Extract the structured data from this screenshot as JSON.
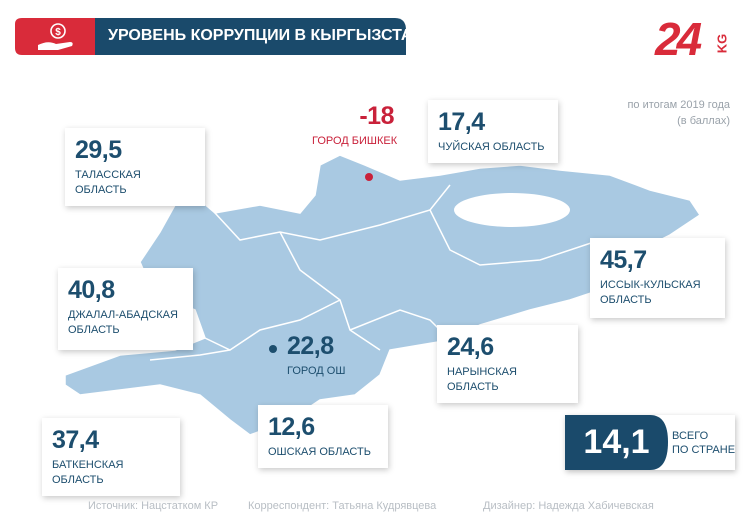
{
  "header": {
    "title": "УРОВЕНЬ КОРРУПЦИИ В КЫРГЫЗСТАНЕ",
    "logo": "24",
    "logo_suffix": "KG"
  },
  "subtitle": [
    "по итогам 2019 года",
    "(в баллах)"
  ],
  "regions": [
    {
      "value": "29,5",
      "name": "ТАЛАССКАЯ ОБЛАСТЬ"
    },
    {
      "value": "-18",
      "name": "ГОРОД БИШКЕК"
    },
    {
      "value": "17,4",
      "name": "ЧУЙСКАЯ ОБЛАСТЬ"
    },
    {
      "value": "45,7",
      "name": "ИССЫК-КУЛЬСКАЯ ОБЛАСТЬ"
    },
    {
      "value": "40,8",
      "name": "ДЖАЛАЛ-АБАДСКАЯ ОБЛАСТЬ"
    },
    {
      "value": "22,8",
      "name": "ГОРОД ОШ"
    },
    {
      "value": "24,6",
      "name": "НАРЫНСКАЯ ОБЛАСТЬ"
    },
    {
      "value": "37,4",
      "name": "БАТКЕНСКАЯ ОБЛАСТЬ"
    },
    {
      "value": "12,6",
      "name": "ОШСКАЯ ОБЛАСТЬ"
    }
  ],
  "total": {
    "value": "14,1",
    "label": [
      "ВСЕГО",
      "ПО СТРАНЕ"
    ]
  },
  "footer": [
    "Источник: Нацстатком КР",
    "Корреспондент: Татьяна Кудрявцева",
    "Дизайнер: Надежда Хабичевская"
  ]
}
